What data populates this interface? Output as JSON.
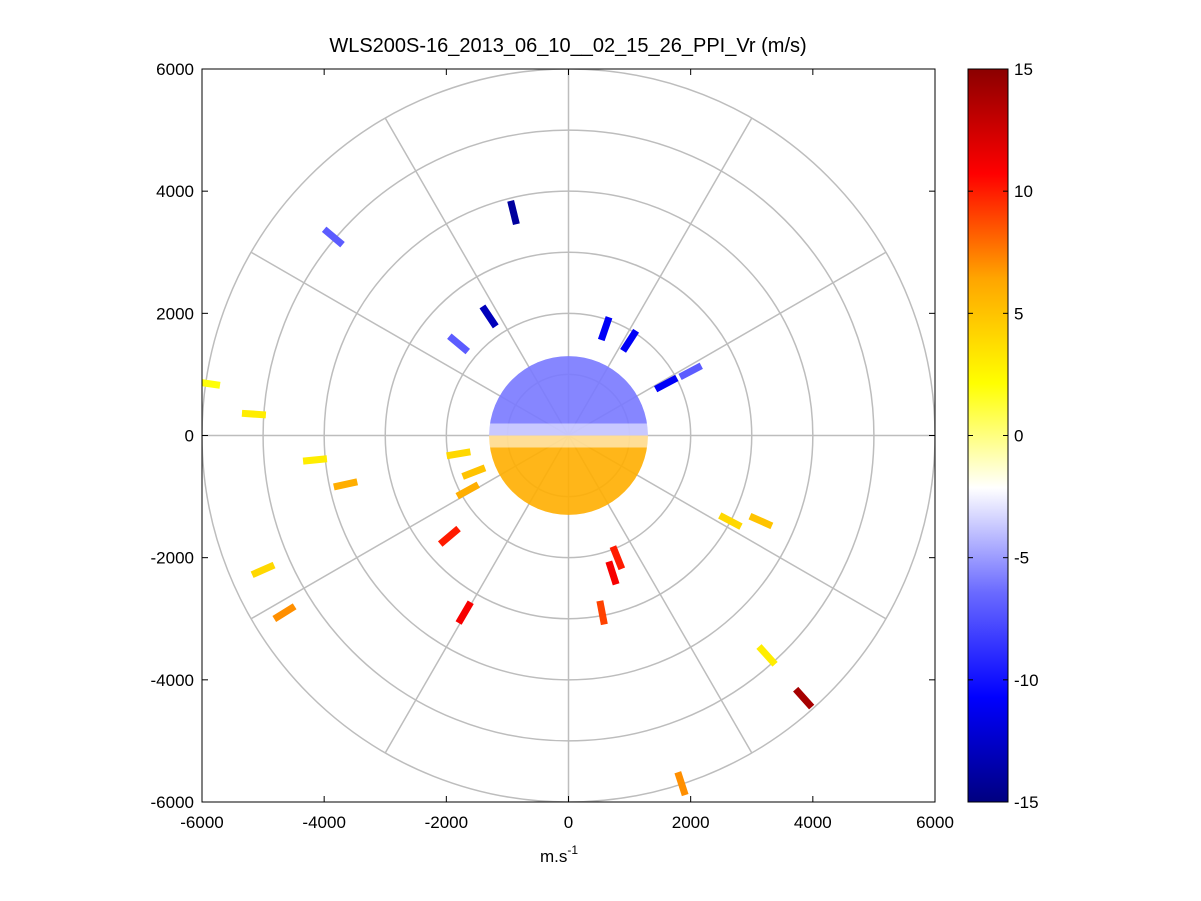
{
  "chart_data": {
    "type": "polar-ppi",
    "title": "WLS200S-16_2013_06_10__02_15_26_PPI_Vr (m/s)",
    "xlabel": "m.s",
    "xlabel_superscript": "-1",
    "ylabel": "",
    "xlim": [
      -6000,
      6000
    ],
    "ylim": [
      -6000,
      6000
    ],
    "xticks": [
      "-6000",
      "-4000",
      "-2000",
      "0",
      "2000",
      "4000",
      "6000"
    ],
    "yticks": [
      "6000",
      "4000",
      "2000",
      "0",
      "-2000",
      "-4000",
      "-6000"
    ],
    "polar_grid": {
      "ring_radii": [
        1000,
        2000,
        3000,
        4000,
        5000,
        6000
      ],
      "spoke_angles_deg": [
        0,
        30,
        60,
        90,
        120,
        150,
        180,
        210,
        240,
        270,
        300,
        330
      ]
    },
    "colorbar": {
      "min": -15,
      "max": 15,
      "ticks": [
        "15",
        "10",
        "5",
        "0",
        "-5",
        "-10",
        "-15"
      ],
      "colormap": "blue-white-yellow-red",
      "stops": [
        "#000080",
        "#0000ff",
        "#6a6aff",
        "#ffffff",
        "#ffff00",
        "#ffa500",
        "#ff0000",
        "#8b0000"
      ]
    },
    "inner_scan": {
      "radius_max": 1300,
      "north_half_velocity": -6,
      "south_half_velocity": 6
    },
    "range_gates": [
      {
        "x": -900,
        "y": 3650,
        "v": -14
      },
      {
        "x": -3850,
        "y": 3250,
        "v": -7
      },
      {
        "x": -1300,
        "y": 1950,
        "v": -13
      },
      {
        "x": -1800,
        "y": 1500,
        "v": -7
      },
      {
        "x": 600,
        "y": 1750,
        "v": -11
      },
      {
        "x": 1000,
        "y": 1550,
        "v": -11
      },
      {
        "x": 1600,
        "y": 850,
        "v": -11
      },
      {
        "x": 2000,
        "y": 1050,
        "v": -7
      },
      {
        "x": -5900,
        "y": 850,
        "v": 2
      },
      {
        "x": -5150,
        "y": 350,
        "v": 3
      },
      {
        "x": -4150,
        "y": -400,
        "v": 3
      },
      {
        "x": -3650,
        "y": -800,
        "v": 6
      },
      {
        "x": -1950,
        "y": -1650,
        "v": 10
      },
      {
        "x": -1700,
        "y": -2900,
        "v": 11
      },
      {
        "x": -5000,
        "y": -2200,
        "v": 4
      },
      {
        "x": -4650,
        "y": -2900,
        "v": 7
      },
      {
        "x": 800,
        "y": -2000,
        "v": 10
      },
      {
        "x": 720,
        "y": -2250,
        "v": 11
      },
      {
        "x": 550,
        "y": -2900,
        "v": 9
      },
      {
        "x": 2650,
        "y": -1400,
        "v": 4
      },
      {
        "x": 3150,
        "y": -1400,
        "v": 5
      },
      {
        "x": 3250,
        "y": -3600,
        "v": 3
      },
      {
        "x": 3850,
        "y": -4300,
        "v": 14
      },
      {
        "x": 1850,
        "y": -5700,
        "v": 7
      },
      {
        "x": -1800,
        "y": -300,
        "v": 4
      },
      {
        "x": -1550,
        "y": -600,
        "v": 5
      },
      {
        "x": -1650,
        "y": -900,
        "v": 6
      }
    ]
  }
}
